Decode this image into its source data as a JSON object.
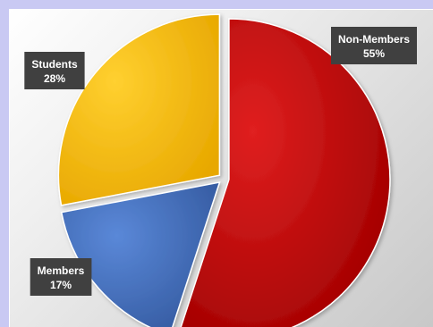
{
  "chart_data": {
    "type": "pie",
    "title": "",
    "slices": [
      {
        "label": "Non-Members",
        "value": 55,
        "value_label": "55%",
        "color": "#c00000"
      },
      {
        "label": "Members",
        "value": 17,
        "value_label": "17%",
        "color": "#4472c4"
      },
      {
        "label": "Students",
        "value": 28,
        "value_label": "28%",
        "color": "#ffc000"
      }
    ],
    "start_angle_deg": 0,
    "direction": "clockwise",
    "exploded": true,
    "label_box_color": "#404040",
    "legend": "none"
  }
}
